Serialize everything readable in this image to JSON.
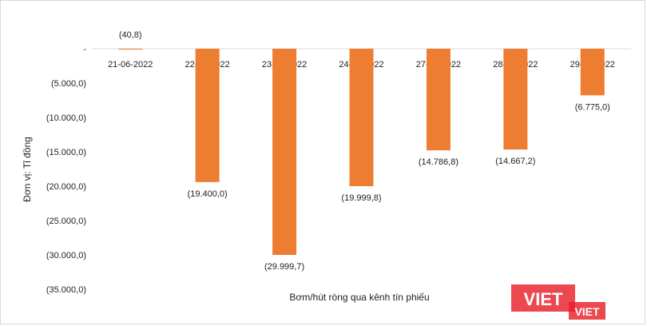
{
  "chart_data": {
    "type": "bar",
    "categories": [
      "21-06-2022",
      "22-06-2022",
      "23-06-2022",
      "24-06-2022",
      "27-06-2022",
      "28-06-2022",
      "29-06-2022"
    ],
    "values": [
      -40.8,
      -19400.0,
      -29999.7,
      -19999.8,
      -14786.8,
      -14667.2,
      -6775.0
    ],
    "data_labels": [
      "(40,8)",
      "(19.400,0)",
      "(29.999,7)",
      "(19.999,8)",
      "(14.786,8)",
      "(14.667,2)",
      "(6.775,0)"
    ],
    "ylim": [
      -35000,
      0
    ],
    "yticks": [
      0,
      -5000,
      -10000,
      -15000,
      -20000,
      -25000,
      -30000,
      -35000
    ],
    "ytick_labels": [
      "-",
      "(5.000,0)",
      "(10.000,0)",
      "(15.000,0)",
      "(20.000,0)",
      "(25.000,0)",
      "(30.000,0)",
      "(35.000,0)"
    ],
    "ylabel": "Đơn vị: Tỉ đồng",
    "xlabel": "Bơm/hút ròng qua kênh tín phiếu",
    "bar_color": "#ed7d31",
    "grid": false
  },
  "watermark": {
    "text_main": "VIET",
    "text_small": "VIET",
    "brand_color": "#e8202a"
  }
}
